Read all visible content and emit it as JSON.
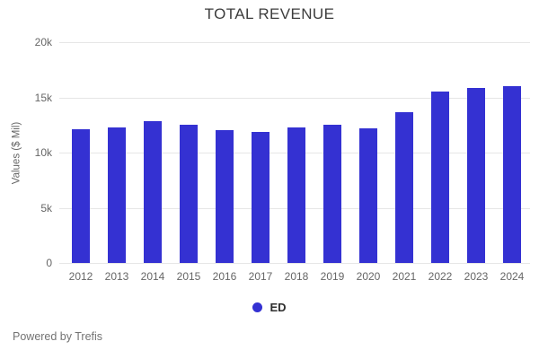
{
  "title": "TOTAL REVENUE",
  "y_axis": {
    "label": "Values ($ Mil)",
    "ticks": [
      "20k",
      "15k",
      "10k",
      "5k",
      "0"
    ]
  },
  "legend": {
    "label": "ED",
    "marker_color": "#3431d2"
  },
  "footer": "Powered by Trefis",
  "colors": {
    "bar": "#3431d2",
    "grid": "#e6e6e6",
    "title_text": "#3d3d3d",
    "tick_text": "#666666",
    "footer_text": "#737373"
  },
  "chart_data": {
    "type": "bar",
    "title": "TOTAL REVENUE",
    "xlabel": "",
    "ylabel": "Values ($ Mil)",
    "ylim": [
      0,
      20000
    ],
    "grid": true,
    "legend_position": "bottom",
    "categories": [
      "2012",
      "2013",
      "2014",
      "2015",
      "2016",
      "2017",
      "2018",
      "2019",
      "2020",
      "2021",
      "2022",
      "2023",
      "2024"
    ],
    "series": [
      {
        "name": "ED",
        "color": "#3431d2",
        "values": [
          12100,
          12300,
          12850,
          12500,
          12050,
          11900,
          12300,
          12500,
          12200,
          13650,
          15550,
          15850,
          16000
        ]
      }
    ]
  }
}
